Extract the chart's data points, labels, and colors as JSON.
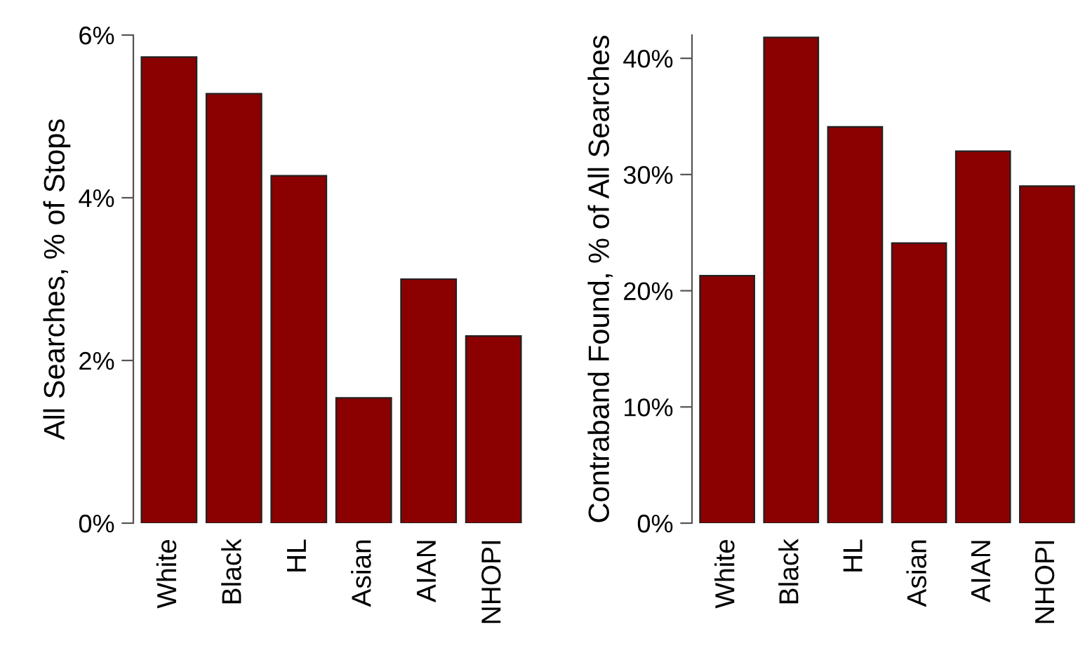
{
  "chart_data": [
    {
      "type": "bar",
      "ylabel": "All Searches, % of Stops",
      "categories": [
        "White",
        "Black",
        "HL",
        "Asian",
        "AIAN",
        "NHOPI"
      ],
      "values": [
        5.73,
        5.28,
        4.27,
        1.54,
        3.0,
        2.3
      ],
      "color": "#8b0000",
      "ylim": [
        0,
        6
      ],
      "yticks": [
        {
          "value": 0,
          "label": "0%"
        },
        {
          "value": 2,
          "label": "2%"
        },
        {
          "value": 4,
          "label": "4%"
        },
        {
          "value": 6,
          "label": "6%"
        }
      ],
      "grid": false
    },
    {
      "type": "bar",
      "ylabel": "Contraband Found, % of All Searches",
      "categories": [
        "White",
        "Black",
        "HL",
        "Asian",
        "AIAN",
        "NHOPI"
      ],
      "values": [
        21.3,
        41.8,
        34.1,
        24.1,
        32.0,
        29.0
      ],
      "color": "#8b0000",
      "ylim": [
        0,
        42
      ],
      "yticks": [
        {
          "value": 0,
          "label": "0%"
        },
        {
          "value": 10,
          "label": "10%"
        },
        {
          "value": 20,
          "label": "20%"
        },
        {
          "value": 30,
          "label": "30%"
        },
        {
          "value": 40,
          "label": "40%"
        }
      ],
      "grid": false
    }
  ]
}
